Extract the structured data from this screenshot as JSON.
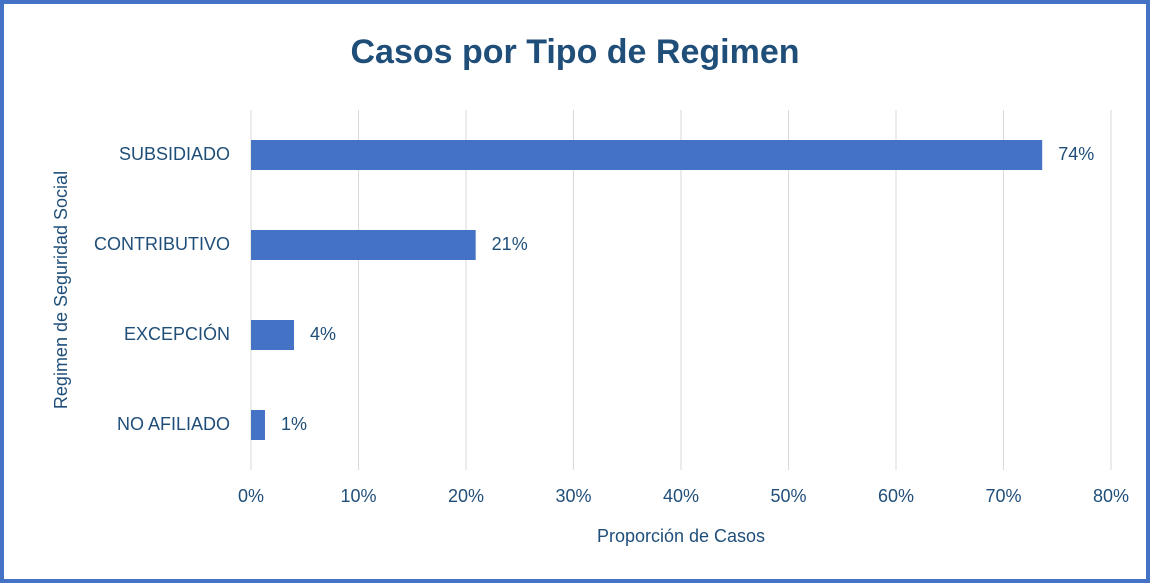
{
  "chart_data": {
    "type": "barh",
    "title": "Casos por Tipo de Regimen",
    "xlabel": "Proporción de Casos",
    "ylabel": "Regimen de Seguridad Social",
    "categories": [
      "SUBSIDIADO",
      "CONTRIBUTIVO",
      "EXCEPCIÓN",
      "NO AFILIADO"
    ],
    "values": [
      73.6,
      20.9,
      4.0,
      1.3
    ],
    "value_labels": [
      "74%",
      "21%",
      "4%",
      "1%"
    ],
    "color": "#4472c4",
    "xlim": [
      0,
      80
    ],
    "xticks": [
      {
        "value": 0,
        "label": "0%"
      },
      {
        "value": 10,
        "label": "10%"
      },
      {
        "value": 20,
        "label": "20%"
      },
      {
        "value": 30,
        "label": "30%"
      },
      {
        "value": 40,
        "label": "40%"
      },
      {
        "value": 50,
        "label": "50%"
      },
      {
        "value": 60,
        "label": "60%"
      },
      {
        "value": 70,
        "label": "70%"
      },
      {
        "value": 80,
        "label": "80%"
      }
    ],
    "grid": true
  }
}
